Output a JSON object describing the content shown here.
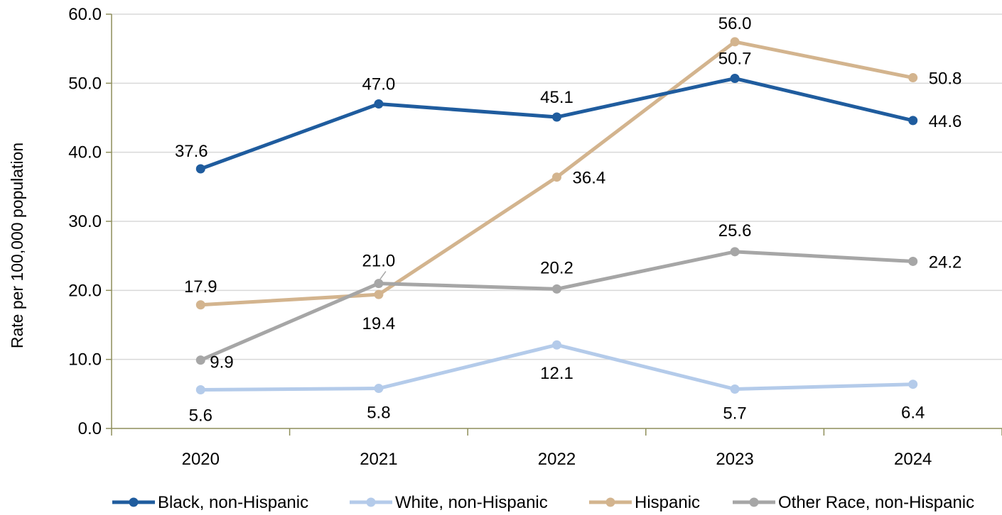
{
  "chart_data": {
    "type": "line",
    "title": "",
    "xlabel": "",
    "ylabel": "Rate per 100,000 population",
    "ylim": [
      0,
      60
    ],
    "yticks": [
      "0.0",
      "10.0",
      "20.0",
      "30.0",
      "40.0",
      "50.0",
      "60.0"
    ],
    "categories": [
      "2020",
      "2021",
      "2022",
      "2023",
      "2024"
    ],
    "grid": true,
    "legend_position": "bottom",
    "series": [
      {
        "name": "Black, non-Hispanic",
        "color": "#1F5C9E",
        "values": [
          37.6,
          47.0,
          45.1,
          50.7,
          44.6
        ],
        "labels": [
          "37.6",
          "47.0",
          "45.1",
          "50.7",
          "44.6"
        ]
      },
      {
        "name": "White, non-Hispanic",
        "color": "#B4CBEA",
        "values": [
          5.6,
          5.8,
          12.1,
          5.7,
          6.4
        ],
        "labels": [
          "5.6",
          "5.8",
          "12.1",
          "5.7",
          "6.4"
        ]
      },
      {
        "name": "Hispanic",
        "color": "#D3B48E",
        "values": [
          17.9,
          19.4,
          36.4,
          56.0,
          50.8
        ],
        "labels": [
          "17.9",
          "19.4",
          "36.4",
          "56.0",
          "50.8"
        ]
      },
      {
        "name": "Other Race, non-Hispanic",
        "color": "#A6A6A6",
        "values": [
          9.9,
          21.0,
          20.2,
          25.6,
          24.2
        ],
        "labels": [
          "9.9",
          "21.0",
          "20.2",
          "25.6",
          "24.2"
        ]
      }
    ]
  }
}
